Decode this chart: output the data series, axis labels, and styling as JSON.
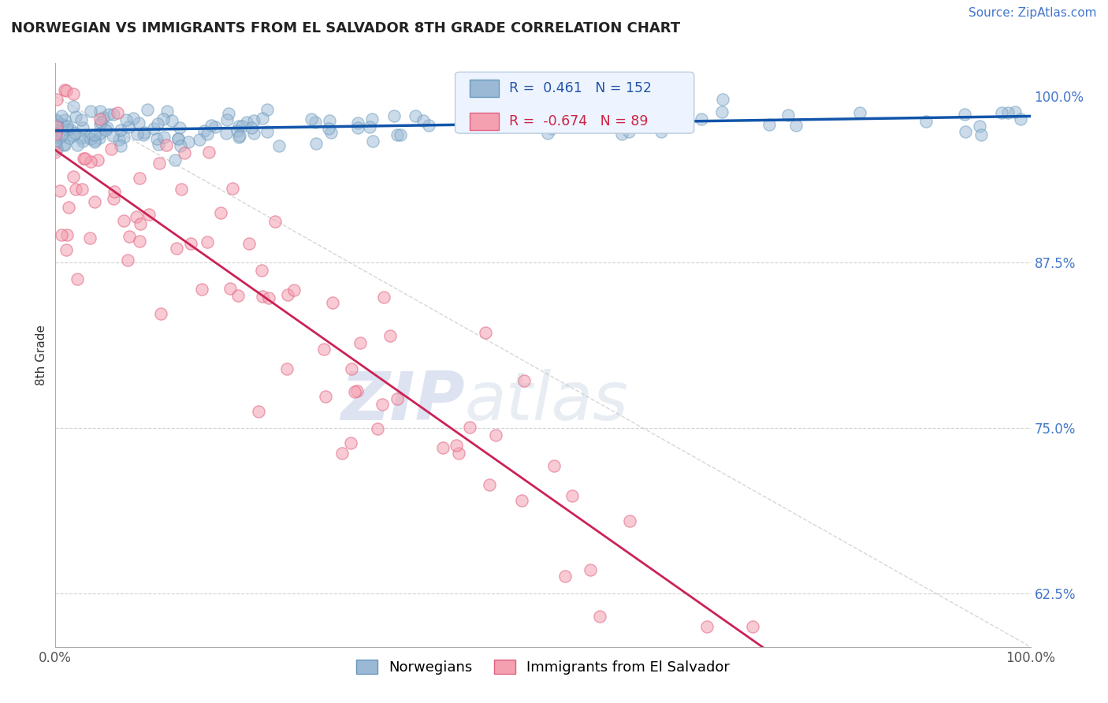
{
  "title": "NORWEGIAN VS IMMIGRANTS FROM EL SALVADOR 8TH GRADE CORRELATION CHART",
  "source": "Source: ZipAtlas.com",
  "ylabel": "8th Grade",
  "ytick_labels": [
    "62.5%",
    "75.0%",
    "87.5%",
    "100.0%"
  ],
  "ytick_values": [
    0.625,
    0.75,
    0.875,
    1.0
  ],
  "xlim": [
    0.0,
    1.0
  ],
  "ylim": [
    0.585,
    1.025
  ],
  "norwegian_color": "#9BB8D4",
  "norwegian_edge": "#6699BB",
  "norwegian_alpha": 0.5,
  "elsalvador_color": "#F4A0B0",
  "elsalvador_edge": "#E06080",
  "elsalvador_alpha": 0.55,
  "trend_norwegian_color": "#1155AA",
  "trend_elsalvador_color": "#CC2255",
  "diag_color": "#CCCCCC",
  "legend_box_color": "#EEF4FF",
  "legend_box_edge": "#BBCCDD",
  "r_norwegian": 0.461,
  "n_norwegian": 152,
  "r_elsalvador": -0.674,
  "n_elsalvador": 89,
  "watermark_zip_color": "#AABBDD",
  "watermark_atlas_color": "#AABBDD",
  "legend_label_norwegian": "Norwegians",
  "legend_label_elsalvador": "Immigrants from El Salvador",
  "title_fontsize": 13,
  "source_fontsize": 11,
  "tick_fontsize": 12,
  "ylabel_fontsize": 11,
  "scatter_size": 120,
  "trend_lw_norw": 2.5,
  "trend_lw_elsal": 2.0,
  "diag_lw": 1.0
}
